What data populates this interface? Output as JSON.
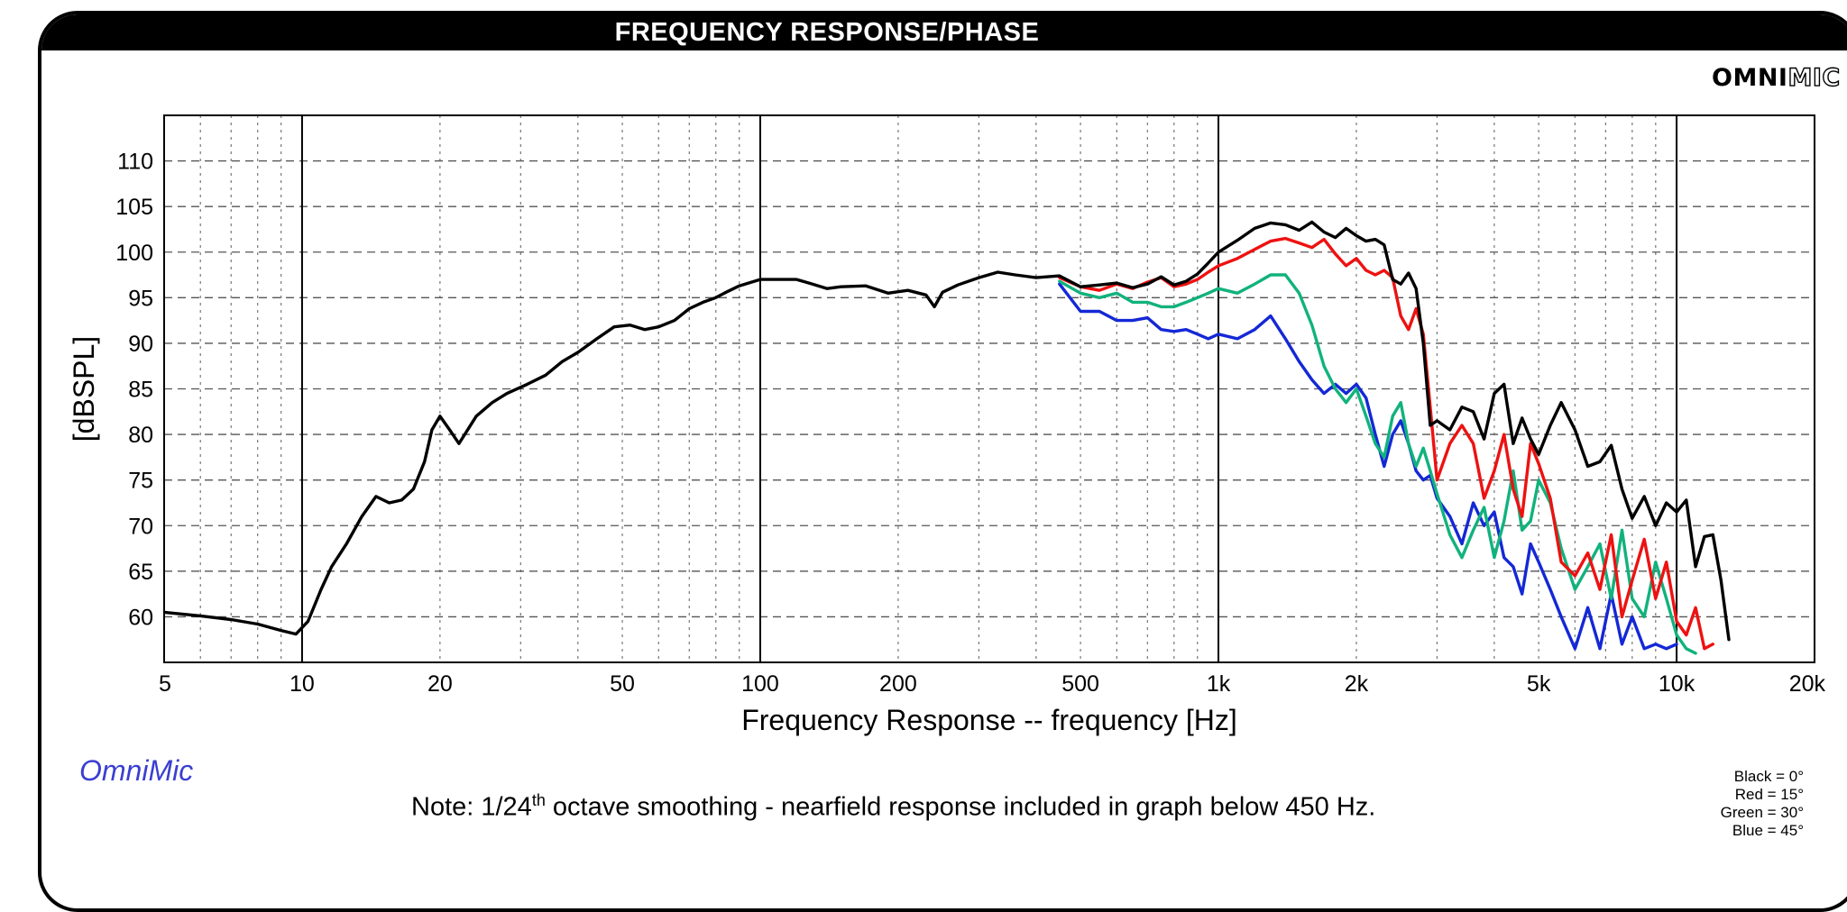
{
  "header": {
    "title": "FREQUENCY RESPONSE/PHASE",
    "brand_bold": "OMNI",
    "brand_outline": "MIC"
  },
  "footer": {
    "logo_text": "OmniMic",
    "note_prefix": "Note: 1/24",
    "note_sup": "th",
    "note_suffix": " octave smoothing - nearfield response included in graph below 450 Hz.",
    "legend": [
      "Black = 0°",
      "Red = 15°",
      "Green = 30°",
      "Blue = 45°"
    ]
  },
  "colors": {
    "black": "#000000",
    "red": "#ee1111",
    "green": "#11b27d",
    "blue": "#1428d6"
  },
  "chart_data": {
    "type": "line",
    "title": "FREQUENCY RESPONSE/PHASE",
    "xlabel": "Frequency Response -- frequency [Hz]",
    "ylabel": "[dBSPL]",
    "x_scale": "log",
    "xlim": [
      5,
      20000
    ],
    "ylim": [
      55,
      115
    ],
    "x_ticks": [
      5,
      10,
      20,
      50,
      100,
      200,
      500,
      1000,
      2000,
      5000,
      10000,
      20000
    ],
    "x_tick_labels": [
      "5",
      "10",
      "20",
      "50",
      "100",
      "200",
      "500",
      "1k",
      "2k",
      "5k",
      "10k",
      "20k"
    ],
    "y_ticks": [
      60,
      65,
      70,
      75,
      80,
      85,
      90,
      95,
      100,
      105,
      110
    ],
    "grid": true,
    "series": [
      {
        "name": "Black = 0°",
        "color": "#000000",
        "x": [
          5,
          6,
          7,
          8,
          9,
          9.7,
          10.3,
          11,
          11.6,
          12.5,
          13.5,
          14.5,
          15.5,
          16.5,
          17.5,
          18.5,
          19.2,
          20,
          21,
          22,
          24,
          26,
          28,
          31,
          34,
          37,
          40,
          44,
          48,
          52,
          56,
          60,
          65,
          70,
          75,
          80,
          85,
          90,
          100,
          110,
          120,
          130,
          140,
          150,
          170,
          190,
          210,
          230,
          240,
          250,
          270,
          300,
          330,
          360,
          400,
          450,
          500,
          550,
          600,
          650,
          700,
          750,
          800,
          850,
          900,
          950,
          1000,
          1100,
          1200,
          1300,
          1400,
          1500,
          1600,
          1700,
          1800,
          1900,
          2000,
          2100,
          2200,
          2300,
          2400,
          2500,
          2600,
          2700,
          2800,
          2900,
          3000,
          3200,
          3400,
          3600,
          3800,
          4000,
          4200,
          4400,
          4600,
          4800,
          5000,
          5300,
          5600,
          6000,
          6400,
          6800,
          7200,
          7600,
          8000,
          8500,
          9000,
          9500,
          10000,
          10500,
          11000,
          11500,
          12000,
          12500,
          13000
        ],
        "y": [
          60.5,
          60.1,
          59.7,
          59.2,
          58.5,
          58.1,
          59.5,
          63,
          65.5,
          68,
          71,
          73.2,
          72.5,
          72.8,
          74,
          77,
          80.5,
          82,
          80.5,
          79,
          82,
          83.5,
          84.5,
          85.5,
          86.5,
          88,
          89,
          90.5,
          91.8,
          92,
          91.5,
          91.8,
          92.5,
          93.8,
          94.5,
          95,
          95.7,
          96.3,
          97,
          97,
          97,
          96.5,
          96,
          96.2,
          96.3,
          95.5,
          95.8,
          95.3,
          94,
          95.6,
          96.4,
          97.2,
          97.8,
          97.5,
          97.2,
          97.4,
          96.2,
          96.4,
          96.6,
          96.1,
          96.5,
          97.3,
          96.4,
          96.8,
          97.6,
          98.8,
          100,
          101.3,
          102.6,
          103.2,
          103,
          102.4,
          103.3,
          102.2,
          101.6,
          102.6,
          101.8,
          101.2,
          101.4,
          100.8,
          97,
          96.5,
          97.7,
          96,
          90,
          81,
          81.5,
          80.5,
          83,
          82.5,
          79.5,
          84.5,
          85.5,
          79,
          81.8,
          79.5,
          77.8,
          81,
          83.5,
          80.5,
          76.5,
          77,
          78.8,
          74,
          70.8,
          73.2,
          70,
          72.5,
          71.5,
          72.8,
          65.5,
          68.8,
          69,
          64,
          57.5
        ]
      },
      {
        "name": "Red = 15°",
        "color": "#ee1111",
        "x": [
          450,
          500,
          550,
          600,
          650,
          700,
          750,
          800,
          850,
          900,
          950,
          1000,
          1100,
          1200,
          1300,
          1400,
          1500,
          1600,
          1700,
          1800,
          1900,
          2000,
          2100,
          2200,
          2300,
          2400,
          2500,
          2600,
          2700,
          2800,
          2900,
          3000,
          3200,
          3400,
          3600,
          3800,
          4000,
          4200,
          4400,
          4600,
          4800,
          5000,
          5300,
          5600,
          6000,
          6400,
          6800,
          7200,
          7600,
          8000,
          8500,
          9000,
          9500,
          10000,
          10500,
          11000,
          11500,
          12000
        ],
        "y": [
          97.2,
          96.2,
          95.8,
          96.5,
          96,
          96.7,
          97.2,
          96.2,
          96.5,
          97,
          97.8,
          98.5,
          99.3,
          100.3,
          101.2,
          101.5,
          101,
          100.5,
          101.4,
          99.8,
          98.5,
          99.3,
          98,
          97.5,
          98,
          97.2,
          93,
          91.5,
          93.8,
          91,
          83,
          75,
          79,
          81,
          79,
          73,
          76,
          80,
          74,
          71,
          79,
          76.8,
          73,
          66,
          64.5,
          67,
          63,
          69,
          60,
          64,
          68.5,
          62,
          66,
          59.5,
          58,
          61,
          56.5,
          57
        ]
      },
      {
        "name": "Green = 30°",
        "color": "#11b27d",
        "x": [
          450,
          500,
          550,
          600,
          650,
          700,
          750,
          800,
          850,
          900,
          950,
          1000,
          1100,
          1200,
          1300,
          1400,
          1500,
          1600,
          1700,
          1800,
          1900,
          2000,
          2100,
          2200,
          2300,
          2400,
          2500,
          2600,
          2700,
          2800,
          2900,
          3000,
          3200,
          3400,
          3600,
          3800,
          4000,
          4200,
          4400,
          4600,
          4800,
          5000,
          5300,
          5600,
          6000,
          6400,
          6800,
          7200,
          7600,
          8000,
          8500,
          9000,
          9500,
          10000,
          10500,
          11000
        ],
        "y": [
          96.8,
          95.5,
          95,
          95.5,
          94.5,
          94.5,
          94,
          94,
          94.5,
          95,
          95.5,
          96,
          95.5,
          96.5,
          97.5,
          97.5,
          95.5,
          92,
          87.5,
          85,
          83.5,
          85,
          82,
          79,
          77.5,
          82,
          83.5,
          79,
          76.5,
          78.5,
          76,
          73.5,
          69,
          66.5,
          69.5,
          72,
          66.5,
          70.5,
          76,
          69.5,
          70.5,
          75,
          72.5,
          67.5,
          63,
          65.5,
          68,
          62,
          69.5,
          62,
          60,
          66,
          62,
          58,
          56.5,
          56
        ]
      },
      {
        "name": "Blue = 45°",
        "color": "#1428d6",
        "x": [
          450,
          500,
          550,
          600,
          650,
          700,
          750,
          800,
          850,
          900,
          950,
          1000,
          1100,
          1200,
          1300,
          1400,
          1500,
          1600,
          1700,
          1800,
          1900,
          2000,
          2100,
          2200,
          2300,
          2400,
          2500,
          2600,
          2700,
          2800,
          2900,
          3000,
          3200,
          3400,
          3600,
          3800,
          4000,
          4200,
          4400,
          4600,
          4800,
          5000,
          5300,
          5600,
          6000,
          6400,
          6800,
          7200,
          7600,
          8000,
          8500,
          9000,
          9500,
          10000
        ],
        "y": [
          96.5,
          93.5,
          93.5,
          92.5,
          92.5,
          92.8,
          91.5,
          91.3,
          91.5,
          91,
          90.5,
          91,
          90.5,
          91.5,
          93,
          90.5,
          88,
          86,
          84.5,
          85.5,
          84.5,
          85.5,
          84,
          80,
          76.5,
          80,
          81.5,
          79,
          76,
          75,
          75.5,
          73,
          71,
          68,
          72.5,
          70,
          71.5,
          66.5,
          65.5,
          62.5,
          68,
          66,
          63,
          60,
          56.5,
          61,
          56.5,
          62.5,
          57,
          60,
          56.5,
          57,
          56.5,
          57
        ]
      }
    ]
  }
}
